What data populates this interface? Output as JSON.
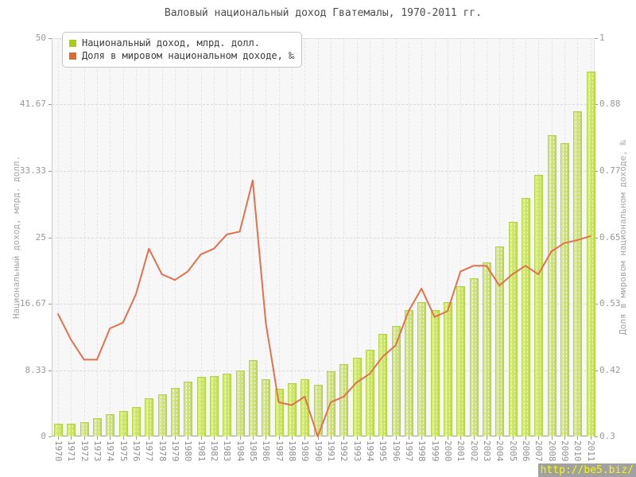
{
  "title": "Валовый национальный доход Гватемалы, 1970-2011 гг.",
  "legend": {
    "items": [
      {
        "label": "Национальный доход, млрд. долл.",
        "color": "#a8ce12"
      },
      {
        "label": "Доля в мировом национальном доходе, ‰",
        "color": "#dd6b2c"
      }
    ]
  },
  "watermark": {
    "text": "http://be5.biz/",
    "href": "http://be5.biz/",
    "bg": "#a1a1a1",
    "color": "#f8f800"
  },
  "chart_data": {
    "type": "bar",
    "title": "Валовый национальный доход Гватемалы, 1970-2011 гг.",
    "categories": [
      "1970",
      "1971",
      "1972",
      "1973",
      "1974",
      "1975",
      "1976",
      "1977",
      "1978",
      "1979",
      "1980",
      "1981",
      "1982",
      "1983",
      "1984",
      "1985",
      "1986",
      "1987",
      "1988",
      "1989",
      "1990",
      "1991",
      "1992",
      "1993",
      "1994",
      "1995",
      "1996",
      "1997",
      "1998",
      "1999",
      "2000",
      "2001",
      "2002",
      "2003",
      "2004",
      "2005",
      "2006",
      "2007",
      "2008",
      "2009",
      "2010",
      "2011"
    ],
    "series": [
      {
        "name": "Национальный доход, млрд. долл.",
        "type": "bar",
        "axis": "left",
        "color": "#c6df59",
        "values": [
          1.6,
          1.6,
          1.8,
          2.3,
          2.8,
          3.2,
          3.7,
          4.8,
          5.3,
          6.1,
          6.9,
          7.5,
          7.6,
          7.9,
          8.3,
          9.6,
          7.2,
          6.0,
          6.7,
          7.2,
          6.5,
          8.2,
          9.1,
          9.9,
          10.9,
          12.9,
          13.9,
          15.9,
          16.9,
          15.9,
          16.9,
          18.9,
          19.9,
          21.9,
          23.9,
          26.9,
          29.9,
          32.8,
          37.8,
          36.8,
          40.8,
          45.8
        ]
      },
      {
        "name": "Доля в мировом национальном доходе, ‰",
        "type": "line",
        "axis": "right",
        "color": "#e2714d",
        "values": [
          0.515,
          0.47,
          0.435,
          0.435,
          0.49,
          0.5,
          0.55,
          0.63,
          0.585,
          0.575,
          0.59,
          0.62,
          0.63,
          0.655,
          0.66,
          0.75,
          0.5,
          0.36,
          0.355,
          0.37,
          0.3,
          0.36,
          0.37,
          0.395,
          0.41,
          0.44,
          0.46,
          0.52,
          0.56,
          0.51,
          0.52,
          0.59,
          0.6,
          0.6,
          0.565,
          0.585,
          0.6,
          0.585,
          0.625,
          0.64,
          0.645,
          0.652
        ]
      }
    ],
    "y_left": {
      "label": "Национальный доход, млрд. долл.",
      "min": 0,
      "max": 50,
      "ticks": [
        "0",
        "8.33",
        "16.67",
        "25",
        "33.33",
        "41.67",
        "50"
      ]
    },
    "y_right": {
      "label": "Доля в мировом национальном доходе, ‰",
      "min": 0.3,
      "max": 1,
      "ticks": [
        "0.3",
        "0.42",
        "0.53",
        "0.65",
        "0.77",
        "0.88",
        "1"
      ]
    },
    "grid": true,
    "legend_position": "top-left"
  }
}
